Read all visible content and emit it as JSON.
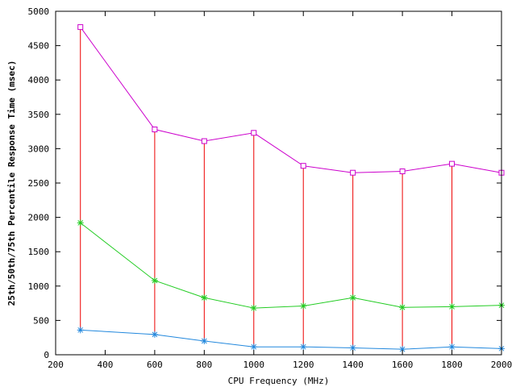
{
  "chart_data": {
    "type": "line",
    "title": "",
    "xlabel": "CPU Frequency (MHz)",
    "ylabel": "25th/50th/75th Percentile Response Time (msec)",
    "xlim": [
      200,
      2000
    ],
    "ylim": [
      0,
      5000
    ],
    "xticks": [
      200,
      400,
      600,
      800,
      1000,
      1200,
      1400,
      1600,
      1800,
      2000
    ],
    "yticks": [
      0,
      500,
      1000,
      1500,
      2000,
      2500,
      3000,
      3500,
      4000,
      4500,
      5000
    ],
    "grid": false,
    "legend": "none",
    "x": [
      300,
      600,
      800,
      1000,
      1200,
      1400,
      1600,
      1800,
      2000
    ],
    "series": [
      {
        "role": "p75",
        "color": "#cc00cc",
        "marker": "square",
        "values": [
          4770,
          3280,
          3110,
          3230,
          2750,
          2650,
          2670,
          2780,
          2650
        ]
      },
      {
        "role": "p50",
        "color": "#22cc22",
        "marker": "star",
        "values": [
          1920,
          1080,
          830,
          680,
          710,
          830,
          690,
          700,
          720
        ]
      },
      {
        "role": "p25",
        "color": "#2288dd",
        "marker": "star",
        "values": [
          360,
          295,
          200,
          115,
          115,
          100,
          80,
          115,
          90
        ]
      }
    ],
    "range_bars": {
      "color": "#ee0000",
      "from_series": "p25",
      "to_series": "p75"
    }
  }
}
